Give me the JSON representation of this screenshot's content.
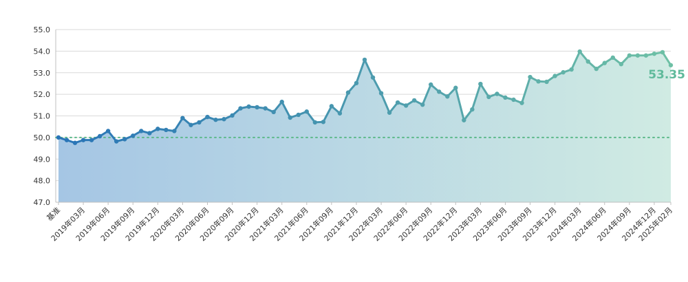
{
  "chart_data": {
    "type": "area",
    "title": "",
    "xlabel": "",
    "ylabel": "",
    "ylim": [
      47.0,
      55.0
    ],
    "y_ticks": [
      "47.0",
      "48.0",
      "49.0",
      "50.0",
      "51.0",
      "52.0",
      "53.0",
      "54.0",
      "55.0"
    ],
    "baseline": 50.0,
    "grid": "horizontal",
    "legend": "none",
    "x_labels": [
      {
        "index": 0,
        "text": "基准"
      },
      {
        "index": 3,
        "text": "2019年03月"
      },
      {
        "index": 6,
        "text": "2019年06月"
      },
      {
        "index": 9,
        "text": "2019年09月"
      },
      {
        "index": 12,
        "text": "2019年12月"
      },
      {
        "index": 15,
        "text": "2020年03月"
      },
      {
        "index": 18,
        "text": "2020年06月"
      },
      {
        "index": 21,
        "text": "2020年09月"
      },
      {
        "index": 24,
        "text": "2020年12月"
      },
      {
        "index": 27,
        "text": "2021年03月"
      },
      {
        "index": 30,
        "text": "2021年06月"
      },
      {
        "index": 33,
        "text": "2021年09月"
      },
      {
        "index": 36,
        "text": "2021年12月"
      },
      {
        "index": 39,
        "text": "2022年03月"
      },
      {
        "index": 42,
        "text": "2022年06月"
      },
      {
        "index": 45,
        "text": "2022年09月"
      },
      {
        "index": 48,
        "text": "2022年12月"
      },
      {
        "index": 51,
        "text": "2023年03月"
      },
      {
        "index": 54,
        "text": "2023年06月"
      },
      {
        "index": 57,
        "text": "2023年09月"
      },
      {
        "index": 60,
        "text": "2023年12月"
      },
      {
        "index": 63,
        "text": "2024年03月"
      },
      {
        "index": 66,
        "text": "2024年06月"
      },
      {
        "index": 69,
        "text": "2024年09月"
      },
      {
        "index": 72,
        "text": "2024年12月"
      },
      {
        "index": 74,
        "text": "2025年02月"
      }
    ],
    "values": [
      50.0,
      49.88,
      49.75,
      49.88,
      49.88,
      50.06,
      50.3,
      49.82,
      49.92,
      50.08,
      50.3,
      50.2,
      50.4,
      50.35,
      50.3,
      50.9,
      50.58,
      50.7,
      50.95,
      50.82,
      50.85,
      51.02,
      51.35,
      51.43,
      51.4,
      51.35,
      51.18,
      51.65,
      50.92,
      51.05,
      51.2,
      50.7,
      50.72,
      51.45,
      51.12,
      52.08,
      52.52,
      53.6,
      52.78,
      52.05,
      51.15,
      51.62,
      51.48,
      51.72,
      51.52,
      52.45,
      52.12,
      51.9,
      52.3,
      50.8,
      51.3,
      52.48,
      51.88,
      52.02,
      51.85,
      51.75,
      51.6,
      52.8,
      52.6,
      52.58,
      52.85,
      53.02,
      53.15,
      53.98,
      53.52,
      53.18,
      53.45,
      53.7,
      53.4,
      53.8,
      53.8,
      53.8,
      53.88,
      53.95,
      53.35
    ],
    "last_value_label": "53.35",
    "colors": {
      "line_start": "#2874b7",
      "line_end": "#6ec0a5",
      "area_start": "#a5c6e4",
      "area_end": "#d0ebe3",
      "baseline": "#5cb98a",
      "grid": "#d9d9d9",
      "axis_text": "#333333",
      "last_label": "#5fba9b"
    }
  }
}
